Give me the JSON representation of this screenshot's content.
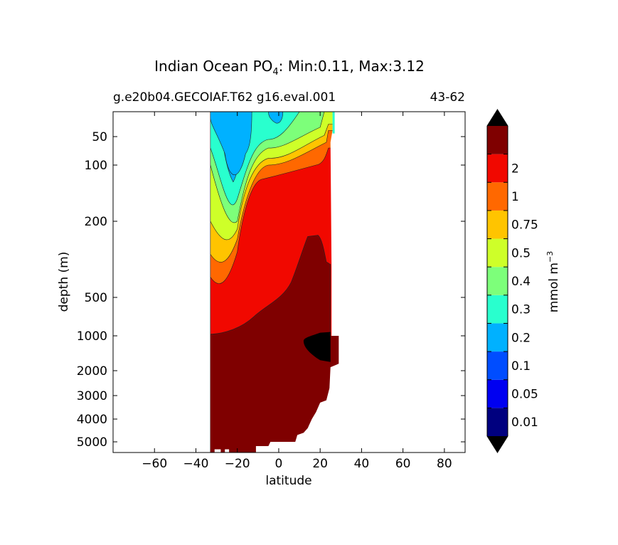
{
  "chart_data": {
    "type": "heatmap",
    "title_main": "Indian Ocean PO",
    "title_sub": "4",
    "title_rest": ": Min:0.11, Max:3.12",
    "case_label": "g.e20b04.GECOIAF.T62 g16.eval.001",
    "years_label": "43-62",
    "xlabel": "latitude",
    "ylabel": "depth (m)",
    "xlim": [
      -80,
      90
    ],
    "x_ticks": [
      -60,
      -40,
      -20,
      0,
      20,
      40,
      60,
      80
    ],
    "x_tick_labels": [
      "−60",
      "−40",
      "−20",
      "0",
      "20",
      "40",
      "60",
      "80"
    ],
    "y_ticks": [
      50,
      100,
      200,
      500,
      1000,
      2000,
      3000,
      4000,
      5000
    ],
    "y_tick_labels": [
      "50",
      "100",
      "200",
      "500",
      "1000",
      "2000",
      "3000",
      "4000",
      "5000"
    ],
    "colorbar": {
      "label": "mmol m",
      "label_exp": "−3",
      "levels": [
        "0.01",
        "0.05",
        "0.1",
        "0.2",
        "0.3",
        "0.4",
        "0.5",
        "0.75",
        "1",
        "2"
      ],
      "colors": [
        "#00007f",
        "#0000f1",
        "#004dff",
        "#00b1ff",
        "#29ffce",
        "#7dff7a",
        "#ceff29",
        "#ffc400",
        "#ff6800",
        "#f10800",
        "#7f0000"
      ],
      "over_color": "#000000",
      "under_color": "#000000",
      "extend": "both"
    },
    "field_region": {
      "lat_range": [
        -33,
        26
      ],
      "depth_range": [
        10,
        5500
      ]
    }
  }
}
